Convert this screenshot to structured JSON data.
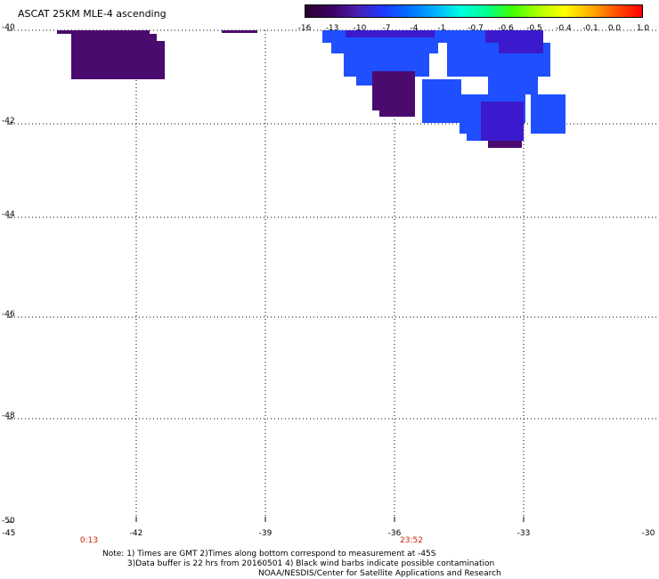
{
  "title": "ASCAT 25KM MLE-4 ascending",
  "colorbar": {
    "labels": [
      "-16",
      "-13",
      "-10",
      "-7",
      "-4",
      "-1",
      "-0.7",
      "-0.6",
      "-0.5",
      "-0.4",
      "-0.1",
      "0.0",
      "1.0"
    ],
    "gradient": [
      "#2a0030",
      "#3c0060",
      "#4a1fb0",
      "#1e38ff",
      "#0070ff",
      "#00b0ff",
      "#00ffe0",
      "#00ff90",
      "#40ff00",
      "#b0ff00",
      "#ffff00",
      "#ffb000",
      "#ff5000",
      "#ff0000"
    ]
  },
  "lat_labels": [
    "-40",
    "-42",
    "-44",
    "-46",
    "-48",
    "-50"
  ],
  "lon_labels": [
    "-45",
    "-42",
    "-39",
    "-36",
    "-33",
    "-30"
  ],
  "time_labels": [
    "0:13",
    "23:52"
  ],
  "notes": {
    "line1": "Note: 1) Times are GMT 2)Times along bottom correspond to measurement at -45S",
    "line2": "3)Data buffer is 22 hrs from 20160501 4) Black wind barbs indicate possible contamination",
    "line3": "NOAA/NESDIS/Center for Satellite Applications and Research"
  },
  "colors": {
    "deep_purple": "#4b0a6e",
    "blue": "#1f4fff",
    "violet": "#3a1acc",
    "mid_blue": "#2a35f0"
  }
}
